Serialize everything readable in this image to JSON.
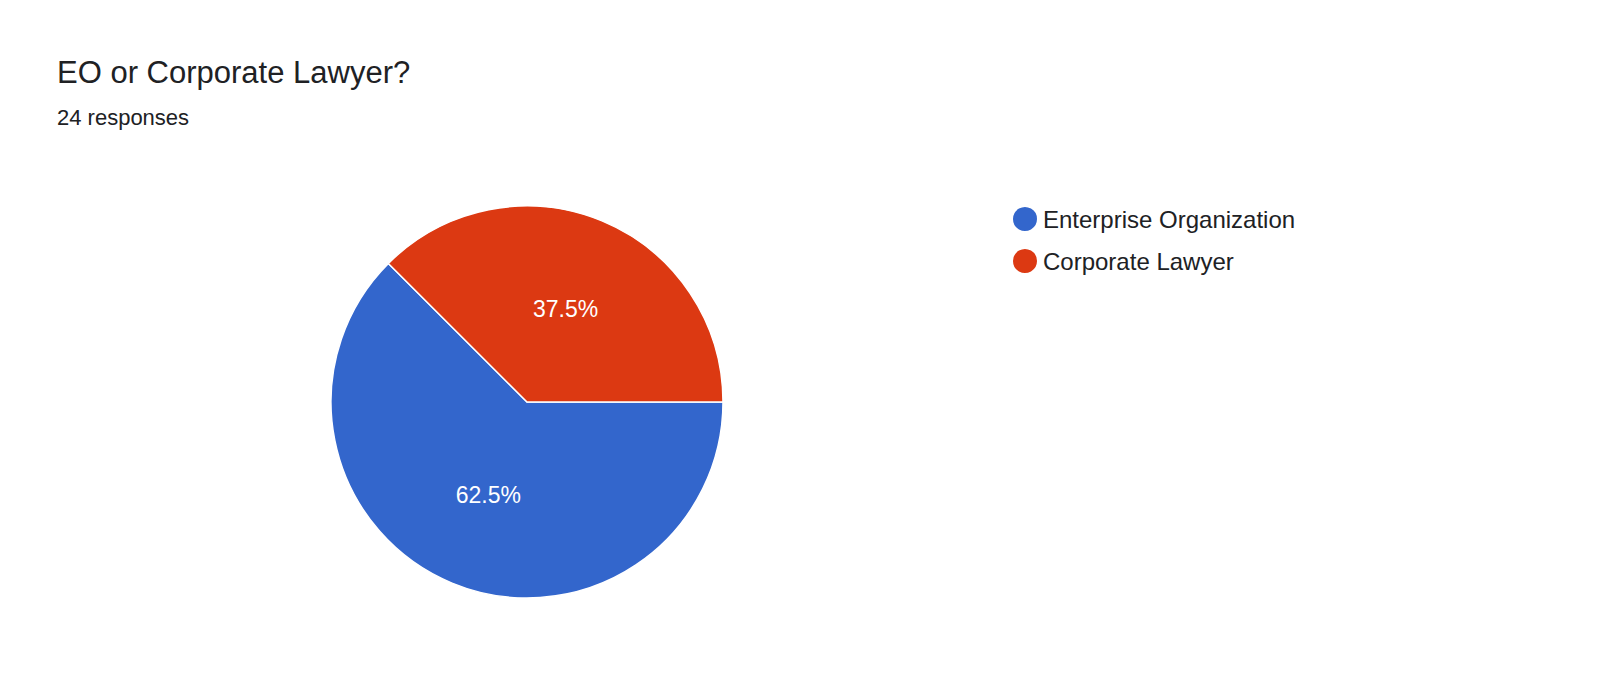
{
  "chart_data": {
    "type": "pie",
    "title": "EO or Corporate Lawyer?",
    "subtitle": "24 responses",
    "categories": [
      "Enterprise Organization",
      "Corporate Lawyer"
    ],
    "values": [
      62.5,
      37.5
    ],
    "value_labels": [
      "62.5%",
      "37.5%"
    ],
    "colors": [
      "#3366cc",
      "#dc3912"
    ],
    "data_labels": true,
    "legend": "right"
  }
}
